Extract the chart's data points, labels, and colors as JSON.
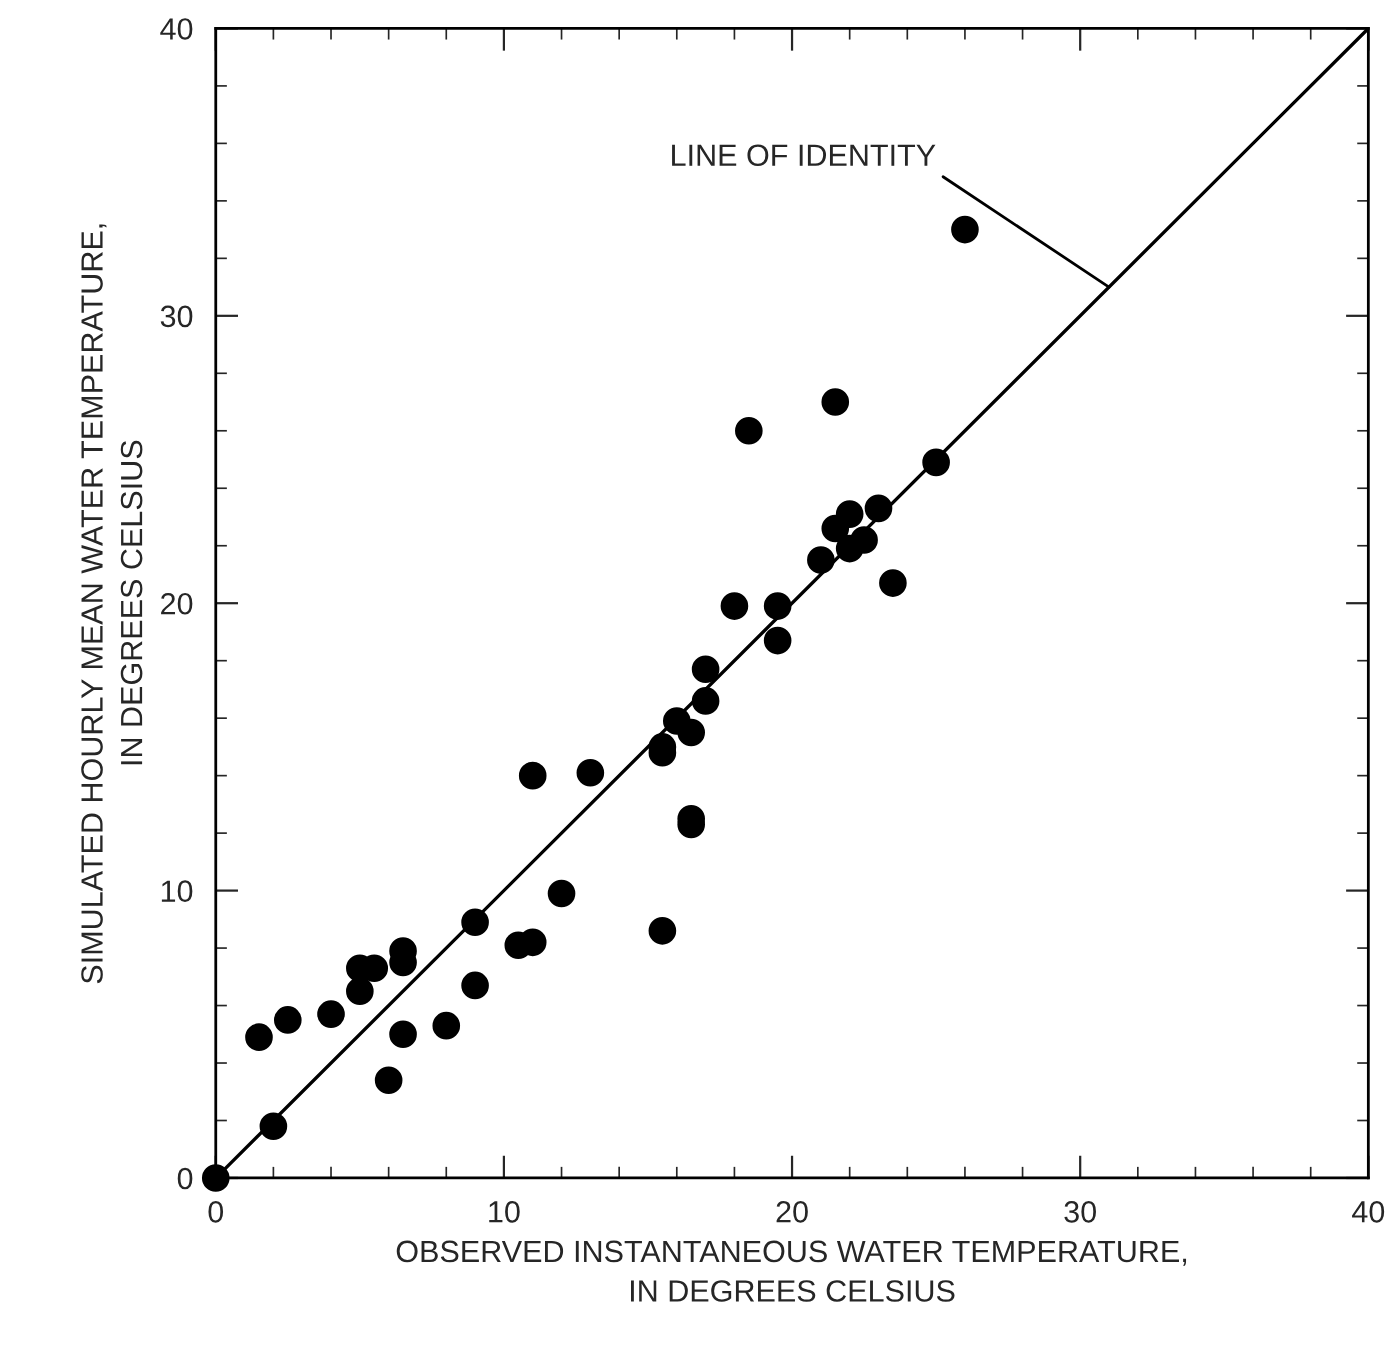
{
  "chart_data": {
    "type": "scatter",
    "xlabel": "OBSERVED INSTANTANEOUS WATER TEMPERATURE,\nIN DEGREES CELSIUS",
    "ylabel": "SIMULATED HOURLY MEAN WATER TEMPERATURE,\nIN DEGREES CELSIUS",
    "xlim": [
      0,
      40
    ],
    "ylim": [
      0,
      40
    ],
    "xticks": [
      0,
      10,
      20,
      30,
      40
    ],
    "yticks": [
      0,
      10,
      20,
      30,
      40
    ],
    "grid": false,
    "legend": false,
    "marker": "circle",
    "annotations": [
      {
        "text": "LINE OF IDENTITY",
        "x": 31,
        "y": 31
      }
    ],
    "series": [
      {
        "color": "#000000",
        "x": [
          0,
          1.5,
          2,
          2.5,
          4,
          5,
          5,
          5.5,
          6,
          6.5,
          6.5,
          6.5,
          8,
          9,
          9,
          10.5,
          11,
          11,
          12,
          13,
          15.5,
          15.5,
          15.5,
          16,
          16.5,
          16.5,
          16.5,
          17,
          17,
          18,
          18.5,
          19.5,
          19.5,
          21,
          21.5,
          21.5,
          22,
          22,
          22.5,
          23,
          23.5,
          25,
          26
        ],
        "values": [
          0,
          4.9,
          1.8,
          5.5,
          5.7,
          7.3,
          6.5,
          7.3,
          3.4,
          7.9,
          7.5,
          5.0,
          5.3,
          8.9,
          6.7,
          8.1,
          8.2,
          14.0,
          9.9,
          14.1,
          8.6,
          15.0,
          14.8,
          15.9,
          15.5,
          12.5,
          12.3,
          17.7,
          16.6,
          19.9,
          26.0,
          19.9,
          18.7,
          21.5,
          22.6,
          27.0,
          23.1,
          21.9,
          22.2,
          23.3,
          20.7,
          24.9,
          33.0
        ]
      },
      {
        "type": "line",
        "marker": "none",
        "color": "#000000",
        "line_style": "solid",
        "x": [
          0,
          40
        ],
        "values": [
          0,
          40
        ]
      }
    ]
  }
}
